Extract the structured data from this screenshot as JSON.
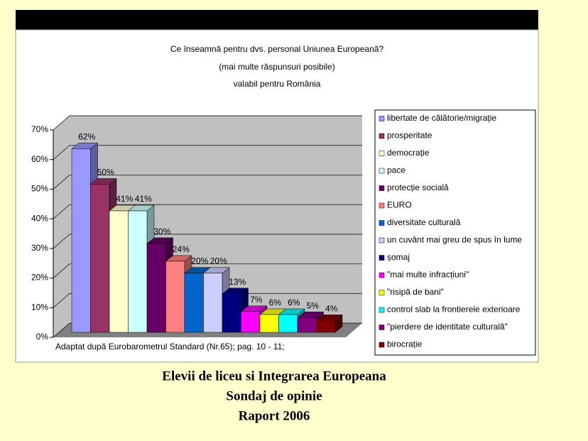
{
  "chart_data": {
    "type": "bar",
    "title": [
      "Ce înseamnă pentru dvs. personal Uniunea Europeană?",
      "(mai multe răspunsuri posibile)",
      "valabil pentru România"
    ],
    "categories": [
      "libertate de călătorie/migrație",
      "prosperitate",
      "democrație",
      "pace",
      "protecție socială",
      "EURO",
      "diversitate culturală",
      "un cuvânt mai greu de spus în lume",
      "șomaj",
      "\"mai multe infracțiuni\"",
      "\"risipă de bani\"",
      "control slab la frontierele exterioare",
      "\"pierdere de identitate culturală\"",
      "birocrație"
    ],
    "values": [
      62,
      50,
      41,
      41,
      30,
      24,
      20,
      20,
      13,
      7,
      6,
      6,
      5,
      4
    ],
    "value_labels": [
      "62%",
      "50%",
      "41%",
      "41%",
      "30%",
      "24%",
      "20%",
      "20%",
      "13%",
      "7%",
      "6%",
      "6%",
      "5%",
      "4%"
    ],
    "colors": [
      "#9999ff",
      "#993366",
      "#ffffcc",
      "#ccffff",
      "#660066",
      "#ff8080",
      "#0066cc",
      "#ccccff",
      "#000080",
      "#ff00ff",
      "#ffff00",
      "#00ffff",
      "#800080",
      "#800000"
    ],
    "ylim": [
      0,
      70
    ],
    "yticks": [
      {
        "value": 0,
        "label": "0%"
      },
      {
        "value": 10,
        "label": "10%"
      },
      {
        "value": 20,
        "label": "20%"
      },
      {
        "value": 30,
        "label": "30%"
      },
      {
        "value": 40,
        "label": "40%"
      },
      {
        "value": 50,
        "label": "50%"
      },
      {
        "value": 60,
        "label": "60%"
      },
      {
        "value": 70,
        "label": "70%"
      }
    ],
    "grid": true,
    "legend": "right",
    "annotation": "Adaptat după Eurobarometrul Standard (Nr.65); pag. 10 - 11;",
    "caption": [
      "Elevii de liceu si Integrarea Europeana",
      "Sondaj de opinie",
      "Raport 2006"
    ]
  }
}
